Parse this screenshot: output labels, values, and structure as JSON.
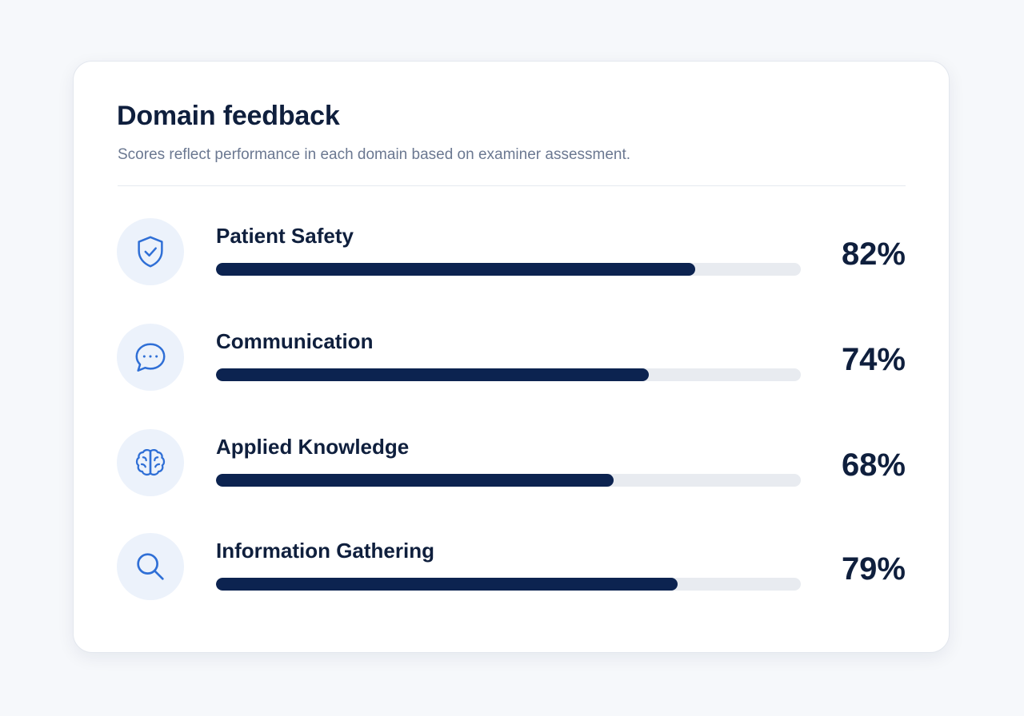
{
  "card": {
    "title": "Domain feedback",
    "subtitle": "Scores reflect performance in each domain based on examiner assessment."
  },
  "colors": {
    "bar_fill": "#0c2350",
    "bar_track": "#e8ebf0",
    "icon_accent": "#2f6fd6",
    "icon_bg": "#ecf2fb"
  },
  "domains": [
    {
      "icon": "shield-check-icon",
      "label": "Patient Safety",
      "percent_label": "82%",
      "score": 82
    },
    {
      "icon": "chat-bubble-icon",
      "label": "Communication",
      "percent_label": "74%",
      "score": 74
    },
    {
      "icon": "brain-icon",
      "label": "Applied Knowledge",
      "percent_label": "68%",
      "score": 68
    },
    {
      "icon": "search-icon",
      "label": "Information Gathering",
      "percent_label": "79%",
      "score": 79
    }
  ]
}
